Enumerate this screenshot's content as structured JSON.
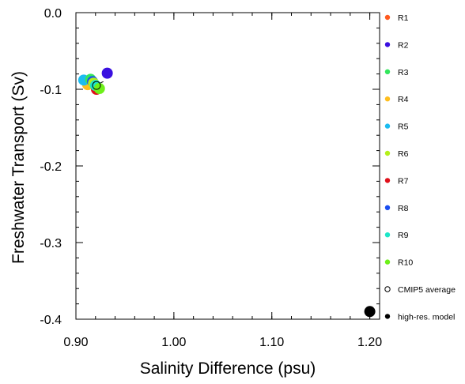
{
  "chart_data": {
    "type": "scatter",
    "title": "",
    "xlabel": "Salinity Difference (psu)",
    "ylabel": "Freshwater Transport (Sv)",
    "xlim": [
      0.9,
      1.21
    ],
    "ylim": [
      -0.4,
      0.0
    ],
    "xticks": [
      0.9,
      1.0,
      1.1,
      1.2
    ],
    "xtick_labels": [
      "0.90",
      "1.00",
      "1.10",
      "1.20"
    ],
    "yticks": [
      0.0,
      -0.1,
      -0.2,
      -0.3,
      -0.4
    ],
    "ytick_labels": [
      "0.0",
      "-0.1",
      "-0.2",
      "-0.3",
      "-0.4"
    ],
    "grid": false,
    "legend_position": "right",
    "series": [
      {
        "name": "R1",
        "color": "#ff5a1f",
        "x": 0.921,
        "y": -0.097,
        "marker": "filled-circle"
      },
      {
        "name": "R2",
        "color": "#3a10e0",
        "x": 0.932,
        "y": -0.079,
        "marker": "filled-circle"
      },
      {
        "name": "R3",
        "color": "#33e65c",
        "x": 0.915,
        "y": -0.087,
        "marker": "filled-circle"
      },
      {
        "name": "R4",
        "color": "#ffbe1e",
        "x": 0.912,
        "y": -0.094,
        "marker": "filled-circle"
      },
      {
        "name": "R5",
        "color": "#1cbcf0",
        "x": 0.908,
        "y": -0.088,
        "marker": "filled-circle"
      },
      {
        "name": "R6",
        "color": "#b4f01a",
        "x": 0.918,
        "y": -0.092,
        "marker": "filled-circle"
      },
      {
        "name": "R7",
        "color": "#e0101a",
        "x": 0.921,
        "y": -0.1,
        "marker": "filled-circle"
      },
      {
        "name": "R8",
        "color": "#1a4ef0",
        "x": 0.917,
        "y": -0.09,
        "marker": "filled-circle"
      },
      {
        "name": "R9",
        "color": "#1ee6c8",
        "x": 0.92,
        "y": -0.095,
        "marker": "filled-circle"
      },
      {
        "name": "R10",
        "color": "#6ef01a",
        "x": 0.924,
        "y": -0.099,
        "marker": "filled-circle"
      },
      {
        "name": "CMIP5 average",
        "color": "#000000",
        "x": 0.921,
        "y": -0.095,
        "marker": "open-circle"
      },
      {
        "name": "high-res. model",
        "color": "#000000",
        "x": 1.2,
        "y": -0.39,
        "marker": "filled-circle"
      }
    ]
  }
}
